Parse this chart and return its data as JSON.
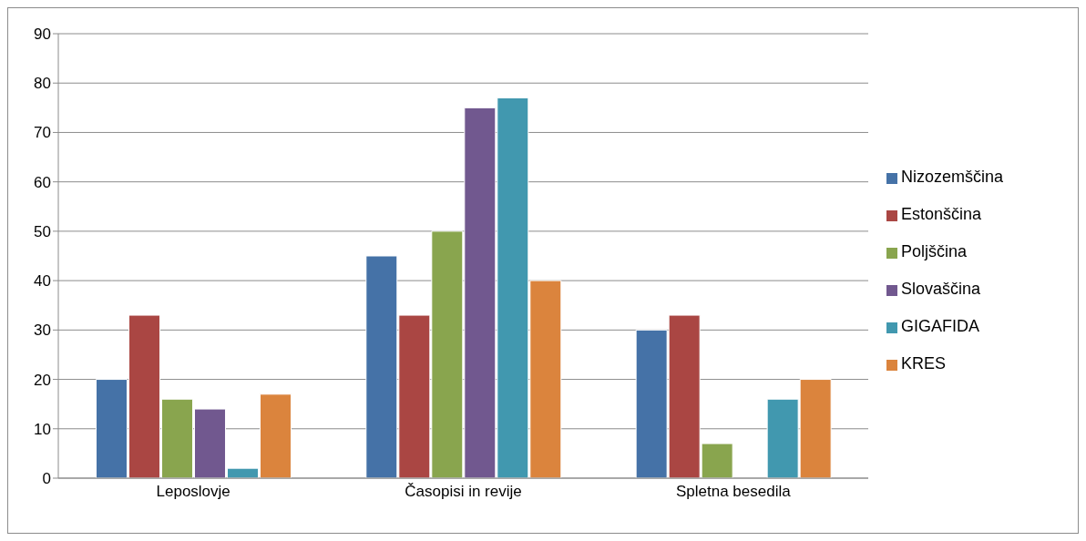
{
  "chart_data": {
    "type": "bar",
    "categories": [
      "Leposlovje",
      "Časopisi in revije",
      "Spletna besedila"
    ],
    "series": [
      {
        "name": "Nizozemščina",
        "color": "#4572a7",
        "values": [
          20,
          45,
          30
        ]
      },
      {
        "name": "Estonščina",
        "color": "#aa4643",
        "values": [
          33,
          33,
          33
        ]
      },
      {
        "name": "Poljščina",
        "color": "#89a54e",
        "values": [
          16,
          50,
          7
        ]
      },
      {
        "name": "Slovaščina",
        "color": "#71588f",
        "values": [
          14,
          75,
          0
        ]
      },
      {
        "name": "GIGAFIDA",
        "color": "#4198af",
        "values": [
          2,
          77,
          16
        ]
      },
      {
        "name": "KRES",
        "color": "#db843d",
        "values": [
          17,
          40,
          20
        ]
      }
    ],
    "ylim": [
      0,
      90
    ],
    "yticks": [
      0,
      10,
      20,
      30,
      40,
      50,
      60,
      70,
      80,
      90
    ],
    "grid": "y",
    "legend": "right"
  }
}
